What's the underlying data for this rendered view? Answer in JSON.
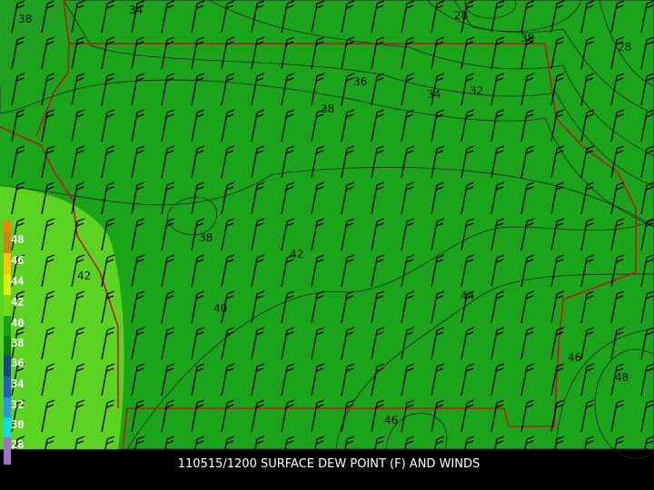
{
  "caption": "110515/1200 SURFACE DEW POINT (F) AND WINDS",
  "legend": {
    "labels": [
      "48",
      "46",
      "44",
      "42",
      "40",
      "38",
      "36",
      "34",
      "32",
      "30",
      "28"
    ]
  },
  "contour_labels": [
    "38",
    "34",
    "28",
    "38",
    "28",
    "36",
    "34",
    "32",
    "38",
    "38",
    "42",
    "42",
    "40",
    "44",
    "46",
    "48",
    "46"
  ]
}
